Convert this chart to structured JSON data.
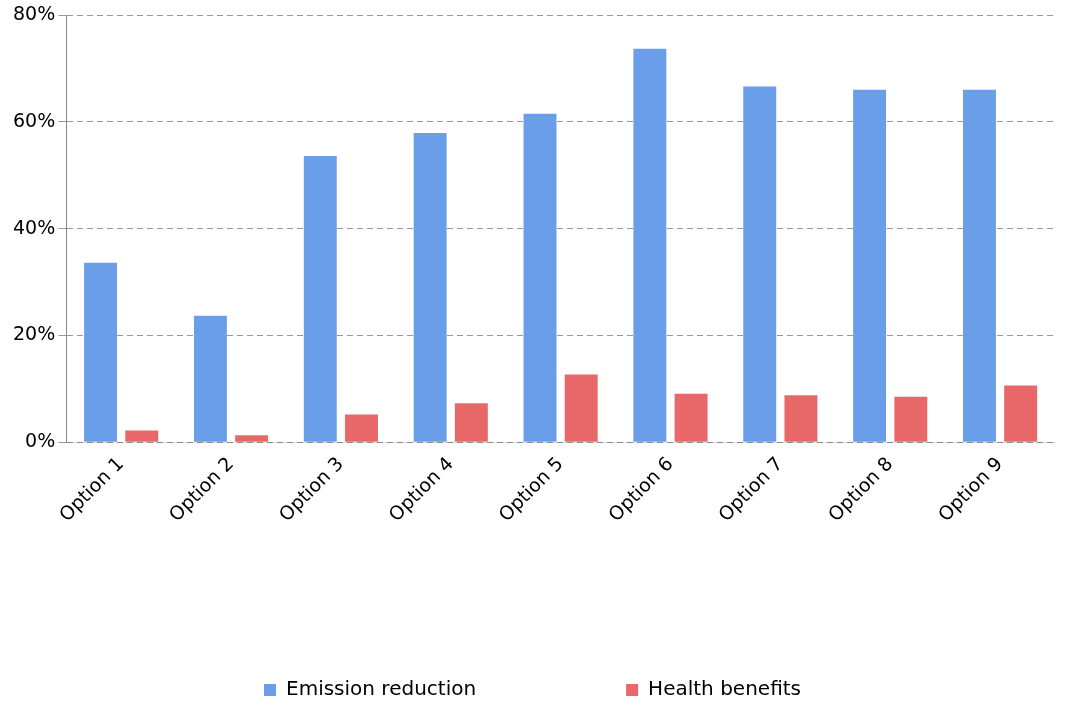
{
  "chart_data": {
    "type": "bar",
    "categories": [
      "Option 1",
      "Option 2",
      "Option 3",
      "Option 4",
      "Option 5",
      "Option 6",
      "Option 7",
      "Option 8",
      "Option 9"
    ],
    "series": [
      {
        "name": "Emission reduction",
        "color": "#6a9ee8",
        "values": [
          33.6,
          23.7,
          53.6,
          57.9,
          61.5,
          73.7,
          66.6,
          66.0,
          66.0
        ]
      },
      {
        "name": "Health benefits",
        "color": "#e8686a",
        "values": [
          2.2,
          1.3,
          5.2,
          7.3,
          12.7,
          9.1,
          8.8,
          8.5,
          10.6
        ]
      }
    ],
    "ylim": [
      0,
      80
    ],
    "yticks": [
      {
        "value": 0,
        "label": "0%"
      },
      {
        "value": 20,
        "label": "20%"
      },
      {
        "value": 40,
        "label": "40%"
      },
      {
        "value": 60,
        "label": "60%"
      },
      {
        "value": 80,
        "label": "80%"
      }
    ],
    "grid": "y",
    "legend": "bottom"
  }
}
